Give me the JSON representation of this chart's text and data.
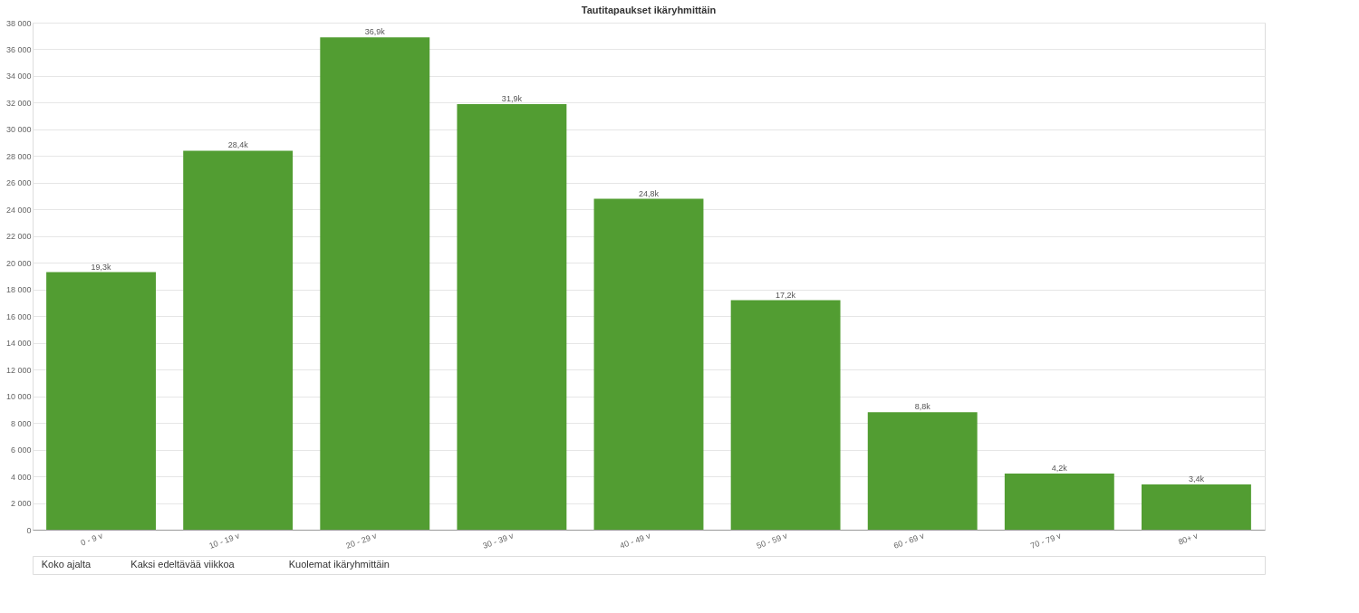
{
  "chart_data": {
    "type": "bar",
    "title": "Tautitapaukset ikäryhmittäin",
    "categories": [
      "0 - 9 v",
      "10 - 19 v",
      "20 - 29 v",
      "30 - 39 v",
      "40 - 49 v",
      "50 - 59 v",
      "60 - 69 v",
      "70 - 79 v",
      "80+ v"
    ],
    "values": [
      19300,
      28400,
      36900,
      31900,
      24800,
      17200,
      8800,
      4200,
      3400
    ],
    "value_labels": [
      "19,3k",
      "28,4k",
      "36,9k",
      "31,9k",
      "24,8k",
      "17,2k",
      "8,8k",
      "4,2k",
      "3,4k"
    ],
    "color": "#529d32",
    "ylim": [
      0,
      38000
    ],
    "yticks": [
      0,
      {
        "value": 2000,
        "label": "2 000"
      },
      {
        "value": 4000,
        "label": "4 000"
      },
      {
        "value": 6000,
        "label": "6 000"
      },
      {
        "value": 8000,
        "label": "8 000"
      },
      {
        "value": 10000,
        "label": "10 000"
      },
      {
        "value": 12000,
        "label": "12 000"
      },
      {
        "value": 14000,
        "label": "14 000"
      },
      {
        "value": 16000,
        "label": "16 000"
      },
      {
        "value": 18000,
        "label": "18 000"
      },
      {
        "value": 20000,
        "label": "20 000"
      },
      {
        "value": 22000,
        "label": "22 000"
      },
      {
        "value": 24000,
        "label": "24 000"
      },
      {
        "value": 26000,
        "label": "26 000"
      },
      {
        "value": 28000,
        "label": "28 000"
      },
      {
        "value": 30000,
        "label": "30 000"
      },
      {
        "value": 32000,
        "label": "32 000"
      },
      {
        "value": 34000,
        "label": "34 000"
      },
      {
        "value": 36000,
        "label": "36 000"
      },
      {
        "value": 38000,
        "label": "38 000"
      }
    ],
    "grid": "y",
    "annotations": [
      "Koko ajalta",
      "Kaksi edeltävää viikkoa",
      "Kuolemat ikäryhmittäin"
    ]
  }
}
